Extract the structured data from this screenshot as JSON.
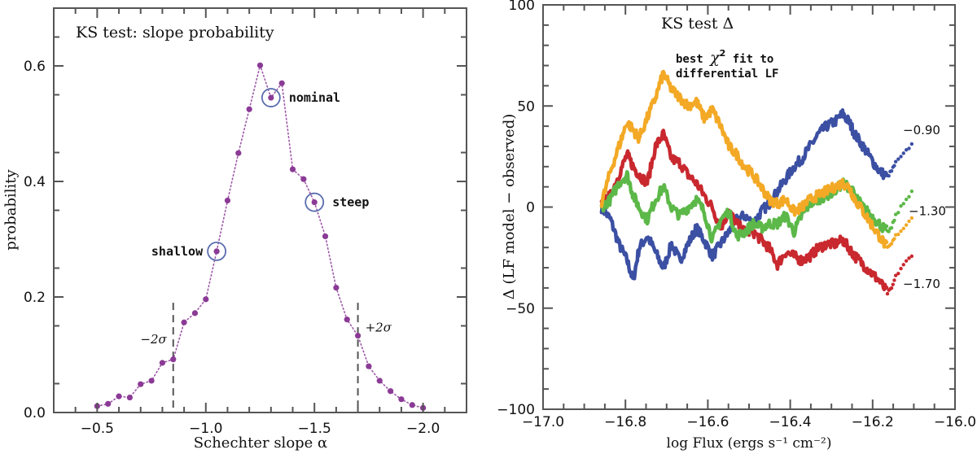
{
  "chart_data": [
    {
      "type": "scatter",
      "title": "KS test: slope probability",
      "xlabel": "Schechter slope α",
      "ylabel": "probability",
      "xlim": [
        -0.3,
        -2.2
      ],
      "ylim": [
        0.0,
        0.7
      ],
      "x_ticks": [
        -0.5,
        -1.0,
        -1.5,
        -2.0
      ],
      "x_tick_labels": [
        "−0.5",
        "−1.0",
        "−1.5",
        "−2.0"
      ],
      "y_ticks": [
        0.0,
        0.2,
        0.4,
        0.6
      ],
      "y_tick_labels": [
        "0.0",
        "0.2",
        "0.4",
        "0.6"
      ],
      "grid": false,
      "series": [
        {
          "name": "probability",
          "color": "#8b3a96",
          "line_style": "dotted",
          "x": [
            -0.5,
            -0.55,
            -0.6,
            -0.65,
            -0.7,
            -0.75,
            -0.8,
            -0.85,
            -0.9,
            -0.95,
            -1.0,
            -1.05,
            -1.1,
            -1.15,
            -1.2,
            -1.25,
            -1.3,
            -1.35,
            -1.4,
            -1.45,
            -1.5,
            -1.55,
            -1.6,
            -1.65,
            -1.7,
            -1.75,
            -1.8,
            -1.85,
            -1.9,
            -1.95,
            -2.0
          ],
          "y": [
            0.011,
            0.015,
            0.028,
            0.026,
            0.049,
            0.055,
            0.086,
            0.092,
            0.156,
            0.172,
            0.196,
            0.279,
            0.367,
            0.449,
            0.525,
            0.601,
            0.545,
            0.57,
            0.421,
            0.404,
            0.364,
            0.305,
            0.216,
            0.161,
            0.133,
            0.08,
            0.055,
            0.037,
            0.023,
            0.013,
            0.008
          ]
        }
      ],
      "highlighted": [
        {
          "label": "shallow",
          "x": -1.05,
          "y": 0.279,
          "label_side": "left"
        },
        {
          "label": "nominal",
          "x": -1.3,
          "y": 0.545,
          "label_side": "right"
        },
        {
          "label": "steep",
          "x": -1.5,
          "y": 0.364,
          "label_side": "right"
        }
      ],
      "circle_color": "#5a6cae",
      "vlines": [
        {
          "x": -0.85,
          "y_top": 0.19,
          "label": "−2σ",
          "label_side": "left"
        },
        {
          "x": -1.7,
          "y_top": 0.19,
          "label": "+2σ",
          "label_side": "right"
        }
      ]
    },
    {
      "type": "line",
      "title": "KS test Δ",
      "xlabel": "log Flux (ergs s⁻¹ cm⁻²)",
      "ylabel": "Δ (LF model − observed)",
      "xlim": [
        -17.0,
        -16.0
      ],
      "ylim": [
        -100,
        100
      ],
      "x_ticks": [
        -17.0,
        -16.8,
        -16.6,
        -16.4,
        -16.2,
        -16.0
      ],
      "x_tick_labels": [
        "−17.0",
        "−16.8",
        "−16.6",
        "−16.4",
        "−16.2",
        "−16.0"
      ],
      "y_ticks": [
        -100,
        -50,
        0,
        50,
        100
      ],
      "y_tick_labels": [
        "−100",
        "−50",
        "0",
        "50",
        "100"
      ],
      "grid": false,
      "annotation": {
        "line1_pre": "best ",
        "chi": "χ",
        "sup": "2",
        "line1_post": " fit to",
        "line2": "differential LF"
      },
      "x": [
        -16.858,
        -16.836,
        -16.816,
        -16.796,
        -16.781,
        -16.767,
        -16.747,
        -16.727,
        -16.708,
        -16.688,
        -16.668,
        -16.648,
        -16.628,
        -16.609,
        -16.589,
        -16.569,
        -16.549,
        -16.53,
        -16.51,
        -16.49,
        -16.47,
        -16.451,
        -16.431,
        -16.411,
        -16.391,
        -16.372,
        -16.352,
        -16.332,
        -16.312,
        -16.292,
        -16.273,
        -16.257,
        -16.243,
        -16.223,
        -16.204,
        -16.184,
        -16.164,
        -16.154,
        -16.144,
        -16.125,
        -16.105
      ],
      "series": [
        {
          "name": "best χ² fit",
          "label": "",
          "color": "#f3a925",
          "values": [
            1.8,
            17.9,
            30,
            42.1,
            38,
            34,
            44.1,
            54.1,
            66.2,
            58.1,
            54.1,
            50.1,
            52.1,
            44.1,
            48.1,
            40,
            30,
            26,
            19.9,
            15.9,
            9.9,
            3.8,
            1.8,
            3.8,
            -2.2,
            -0.2,
            3.8,
            5.8,
            7.8,
            9.9,
            11.9,
            9.9,
            3.8,
            -2.2,
            -8.2,
            -14.3,
            -20.3,
            -18.3,
            -14.3,
            -10.3,
            -5.4
          ]
        },
        {
          "name": "slope -0.90",
          "label": "−0.90",
          "color": "#3b4fa3",
          "values": [
            -0.2,
            -6.2,
            -18.3,
            -26.4,
            -36.4,
            -20.3,
            -14.3,
            -22.3,
            -30.4,
            -18.3,
            -26.4,
            -18.3,
            -10.3,
            -16.3,
            -24.3,
            -18.3,
            -12.3,
            -6.2,
            -4.2,
            -8.2,
            -2.2,
            1.8,
            7.8,
            13.9,
            19.9,
            23.9,
            30,
            36,
            40,
            42.1,
            46.1,
            42.1,
            36,
            30,
            23.9,
            17.9,
            15.1,
            17.9,
            21.9,
            26,
            31.2
          ]
        },
        {
          "name": "slope -1.30",
          "label": "−1.30",
          "color": "#5cb848",
          "values": [
            -0.2,
            3.8,
            11.9,
            15.9,
            5.8,
            -0.2,
            -6.2,
            3.8,
            9.9,
            -0.2,
            -4.2,
            -0.2,
            3.8,
            -2.2,
            -16.3,
            -6.2,
            -2.2,
            -14.3,
            -12.3,
            -8.2,
            -10.3,
            -8.2,
            -8.2,
            -4.2,
            -12.3,
            -4.2,
            1.8,
            3.8,
            5.8,
            7.8,
            11.9,
            9.9,
            5.8,
            -0.2,
            -4.2,
            -8.2,
            -12.3,
            -10.3,
            -4.2,
            1.8,
            7.8
          ]
        },
        {
          "name": "slope -1.70",
          "label": "−1.70",
          "color": "#c8282e",
          "values": [
            1.8,
            5.8,
            15.9,
            26,
            19.9,
            15.9,
            11.9,
            30,
            36,
            23.9,
            21.9,
            15.9,
            11.9,
            5.8,
            -0.2,
            -10.3,
            -2.2,
            -8.2,
            -12.3,
            -12.3,
            -16.3,
            -20.3,
            -28.4,
            -22.3,
            -24.3,
            -26.4,
            -24.3,
            -20.3,
            -18.3,
            -18.3,
            -16.3,
            -20.3,
            -24.3,
            -28.4,
            -32.4,
            -36.4,
            -42.5,
            -40.4,
            -34.4,
            -28.4,
            -24.3
          ]
        }
      ]
    }
  ]
}
